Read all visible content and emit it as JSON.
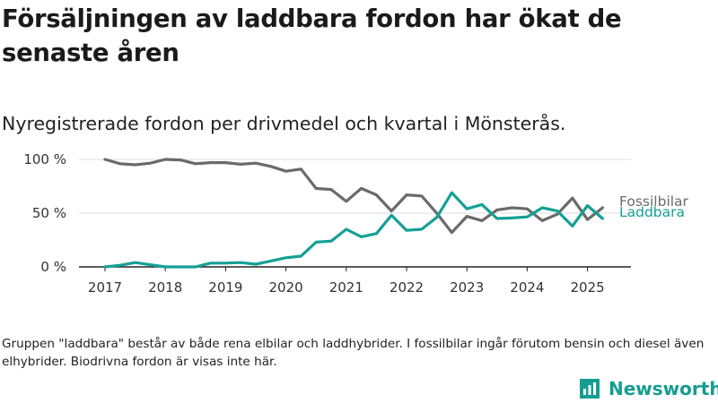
{
  "title": "Försäljningen av laddbara fordon har ökat de senaste åren",
  "subtitle": "Nyregistrerade fordon per drivmedel och kvartal i Mönsterås.",
  "footnote": "Gruppen \"laddbara\" består av både rena elbilar och laddhybrider. I fossilbilar ingår förutom bensin och diesel även elhybrider. Biodrivna fordon är visas inte här.",
  "brand": {
    "name": "Newsworthy",
    "icon": "newsworthy-logo-icon",
    "color": "#159d91"
  },
  "chart_data": {
    "type": "line",
    "title": "Försäljningen av laddbara fordon har ökat de senaste åren",
    "subtitle": "Nyregistrerade fordon per drivmedel och kvartal i Mönsterås.",
    "ylim": [
      0,
      100
    ],
    "yticks": [
      0,
      50,
      100
    ],
    "ytick_labels": [
      "0 %",
      "50 %",
      "100 %"
    ],
    "xticks": [
      "2017",
      "2018",
      "2019",
      "2020",
      "2021",
      "2022",
      "2023",
      "2024",
      "2025"
    ],
    "grid": "horizontal",
    "x": [
      "2017Q1",
      "2017Q2",
      "2017Q3",
      "2017Q4",
      "2018Q1",
      "2018Q2",
      "2018Q3",
      "2018Q4",
      "2019Q1",
      "2019Q2",
      "2019Q3",
      "2019Q4",
      "2020Q1",
      "2020Q2",
      "2020Q3",
      "2020Q4",
      "2021Q1",
      "2021Q2",
      "2021Q3",
      "2021Q4",
      "2022Q1",
      "2022Q2",
      "2022Q3",
      "2022Q4",
      "2023Q1",
      "2023Q2",
      "2023Q3",
      "2023Q4",
      "2024Q1",
      "2024Q2",
      "2024Q3",
      "2024Q4",
      "2025Q1",
      "2025Q2"
    ],
    "series": [
      {
        "name": "Fossilbilar",
        "color": "#6a6a6a",
        "values": [
          100,
          96,
          95,
          96.5,
          100,
          99.5,
          96,
          97,
          97,
          95.5,
          96.5,
          93.5,
          89,
          91,
          73,
          72,
          61,
          73,
          67,
          52,
          67,
          66,
          50,
          32,
          47,
          43,
          53,
          55,
          54,
          43,
          49,
          64,
          44,
          55
        ]
      },
      {
        "name": "Laddbara",
        "color": "#14a095",
        "values": [
          0,
          1.5,
          4,
          2,
          0,
          0,
          0,
          3.5,
          3.5,
          4,
          2.5,
          5.5,
          8.5,
          10,
          23,
          24,
          35,
          28,
          31,
          48,
          34,
          35,
          46,
          69,
          54,
          58,
          45,
          45.5,
          46.5,
          55,
          52,
          38,
          57,
          45
        ]
      }
    ]
  }
}
